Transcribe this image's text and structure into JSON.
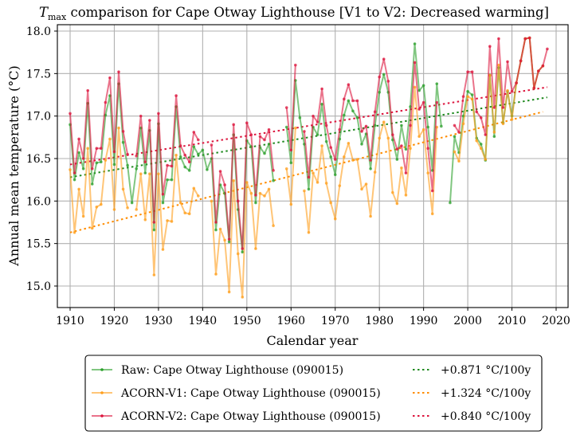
{
  "chart_data": {
    "type": "line",
    "title_prefix": "T",
    "title_subscript": "max",
    "title_rest": " comparison for Cape Otway Lighthouse   [V1 to V2: Decreased warming]",
    "xlabel": "Calendar year",
    "ylabel": "Annual mean temperature (°C)",
    "xlim": [
      1907,
      2023
    ],
    "ylim": [
      14.73,
      18.08
    ],
    "xticks": [
      1910,
      1920,
      1930,
      1940,
      1950,
      1960,
      1970,
      1980,
      1990,
      2000,
      2010,
      2020
    ],
    "yticks": [
      15.0,
      15.5,
      16.0,
      16.5,
      17.0,
      17.5,
      18.0
    ],
    "ytick_labels": [
      "15.0",
      "15.5",
      "16.0",
      "16.5",
      "17.0",
      "17.5",
      "18.0"
    ],
    "grid": true,
    "legend_position": "below",
    "x": [
      1910,
      1911,
      1912,
      1913,
      1914,
      1915,
      1916,
      1917,
      1918,
      1919,
      1920,
      1921,
      1922,
      1923,
      1924,
      1925,
      1926,
      1927,
      1928,
      1929,
      1930,
      1931,
      1932,
      1933,
      1934,
      1935,
      1936,
      1937,
      1938,
      1939,
      1940,
      1941,
      1942,
      1943,
      1944,
      1945,
      1946,
      1947,
      1948,
      1949,
      1950,
      1951,
      1952,
      1953,
      1954,
      1955,
      1956,
      1957,
      1958,
      1959,
      1960,
      1961,
      1962,
      1963,
      1964,
      1965,
      1966,
      1967,
      1968,
      1969,
      1970,
      1971,
      1972,
      1973,
      1974,
      1975,
      1976,
      1977,
      1978,
      1979,
      1980,
      1981,
      1982,
      1983,
      1984,
      1985,
      1986,
      1987,
      1988,
      1989,
      1990,
      1991,
      1992,
      1993,
      1994,
      1995,
      1996,
      1997,
      1998,
      1999,
      2000,
      2001,
      2002,
      2003,
      2004,
      2005,
      2006,
      2007,
      2008,
      2009,
      2010,
      2011,
      2012,
      2013,
      2014,
      2015,
      2016,
      2017,
      2018
    ],
    "series": [
      {
        "name": "Raw: Cape Otway Lighthouse (090015)",
        "color": "#2ca02c",
        "values": [
          16.9,
          16.25,
          16.57,
          16.38,
          17.15,
          16.2,
          16.45,
          16.46,
          17.01,
          17.24,
          16.43,
          17.38,
          16.69,
          16.42,
          15.98,
          16.38,
          16.86,
          16.33,
          16.83,
          15.66,
          16.91,
          15.98,
          16.25,
          16.25,
          17.11,
          16.52,
          16.4,
          16.36,
          16.64,
          16.55,
          16.6,
          16.37,
          16.5,
          15.66,
          16.19,
          16.09,
          15.52,
          16.78,
          15.9,
          15.4,
          16.71,
          16.64,
          15.98,
          16.63,
          16.56,
          16.67,
          16.24,
          null,
          null,
          16.87,
          16.45,
          17.42,
          16.98,
          16.67,
          16.14,
          16.87,
          16.78,
          17.14,
          16.7,
          16.52,
          16.31,
          16.73,
          17.01,
          17.18,
          17.06,
          16.98,
          16.67,
          16.79,
          16.38,
          16.89,
          17.28,
          17.49,
          17.28,
          16.72,
          16.49,
          16.89,
          16.61,
          17.11,
          17.85,
          17.3,
          17.36,
          16.87,
          16.36,
          17.38,
          16.88,
          null,
          15.98,
          16.76,
          16.57,
          17.0,
          17.29,
          17.25,
          16.74,
          16.67,
          16.48,
          17.48,
          16.76,
          17.57,
          16.92,
          17.29,
          17.0,
          17.39,
          17.65,
          17.91,
          17.92,
          17.33,
          17.53,
          17.59,
          null
        ]
      },
      {
        "name": "ACORN-V1: Cape Otway Lighthouse (090015)",
        "color": "#ff9f1c",
        "values": [
          16.37,
          15.63,
          16.14,
          15.82,
          16.62,
          15.68,
          15.93,
          15.96,
          16.48,
          16.73,
          15.9,
          16.86,
          16.14,
          15.92,
          null,
          15.9,
          16.32,
          15.78,
          16.32,
          15.13,
          16.32,
          15.43,
          15.77,
          15.76,
          16.54,
          15.98,
          15.86,
          15.85,
          16.15,
          16.06,
          null,
          null,
          16.0,
          15.14,
          15.67,
          15.54,
          14.93,
          16.24,
          15.38,
          14.87,
          16.22,
          16.09,
          15.44,
          16.09,
          16.06,
          16.14,
          15.71,
          null,
          null,
          16.38,
          15.96,
          16.86,
          null,
          16.12,
          15.63,
          16.33,
          16.22,
          16.65,
          16.21,
          15.98,
          15.79,
          16.18,
          16.52,
          16.68,
          16.48,
          16.49,
          16.14,
          16.2,
          15.82,
          16.34,
          16.74,
          16.93,
          16.74,
          16.1,
          15.97,
          16.39,
          16.07,
          16.62,
          17.34,
          16.76,
          16.84,
          16.33,
          15.85,
          16.87,
          null,
          null,
          null,
          16.58,
          16.47,
          16.91,
          17.23,
          17.2,
          16.71,
          16.62,
          16.49,
          17.48,
          16.81,
          17.6,
          16.91,
          17.3,
          16.96,
          17.39,
          17.65,
          17.91,
          17.92,
          17.33,
          17.53,
          17.59,
          null
        ]
      },
      {
        "name": "ACORN-V2: Cape Otway Lighthouse (090015)",
        "color": "#dc143c",
        "values": [
          17.03,
          16.33,
          16.73,
          16.5,
          17.3,
          16.38,
          16.62,
          16.62,
          17.16,
          17.45,
          16.58,
          17.52,
          16.82,
          16.55,
          null,
          16.53,
          17.0,
          16.46,
          16.95,
          15.75,
          17.03,
          16.08,
          16.42,
          16.41,
          17.24,
          16.65,
          16.54,
          16.46,
          16.81,
          16.72,
          null,
          null,
          16.66,
          15.75,
          16.35,
          16.19,
          15.55,
          16.9,
          16.0,
          15.44,
          16.92,
          16.78,
          16.07,
          16.76,
          16.72,
          16.84,
          16.36,
          null,
          null,
          17.1,
          16.6,
          17.6,
          null,
          16.82,
          16.28,
          17.0,
          16.93,
          17.32,
          16.89,
          16.63,
          16.49,
          16.84,
          17.2,
          17.37,
          17.18,
          17.18,
          16.82,
          16.88,
          16.48,
          17.05,
          17.46,
          17.67,
          17.41,
          16.78,
          16.61,
          16.65,
          16.33,
          16.89,
          17.63,
          17.08,
          17.16,
          16.62,
          16.12,
          17.16,
          null,
          null,
          null,
          16.89,
          16.81,
          17.23,
          17.52,
          17.52,
          17.05,
          16.98,
          16.78,
          17.82,
          17.1,
          17.91,
          17.1,
          17.64,
          17.29,
          17.39,
          17.65,
          17.91,
          17.92,
          17.33,
          17.53,
          17.59,
          17.79
        ]
      }
    ],
    "trends": [
      {
        "label": "+0.871 °C/100y",
        "color": "#228b22",
        "x": [
          1910,
          2018
        ],
        "y": [
          16.28,
          17.22
        ]
      },
      {
        "label": "+1.324 °C/100y",
        "color": "#ff8c00",
        "x": [
          1910,
          2017
        ],
        "y": [
          15.63,
          17.05
        ]
      },
      {
        "label": "+0.840 °C/100y",
        "color": "#dc143c",
        "x": [
          1910,
          2018
        ],
        "y": [
          16.43,
          17.34
        ]
      }
    ]
  }
}
